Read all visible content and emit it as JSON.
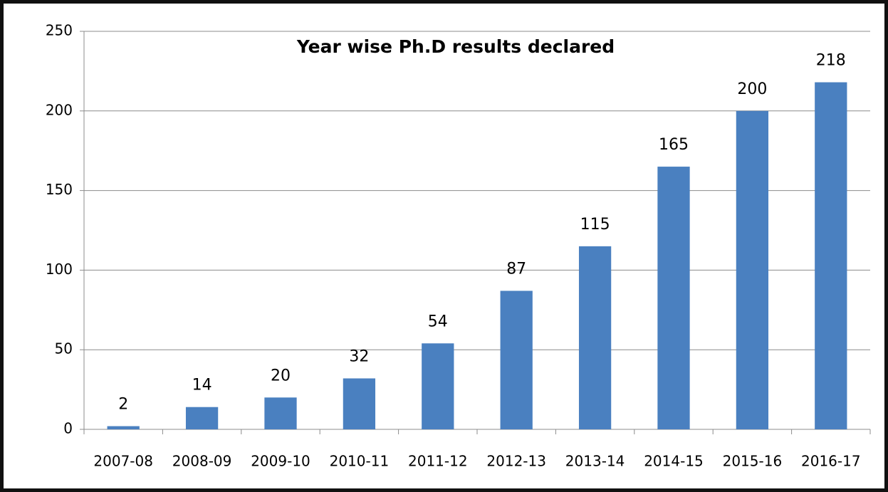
{
  "chart_data": {
    "type": "bar",
    "title": "Year wise Ph.D results declared",
    "categories": [
      "2007-08",
      "2008-09",
      "2009-10",
      "2010-11",
      "2011-12",
      "2012-13",
      "2013-14",
      "2014-15",
      "2015-16",
      "2016-17"
    ],
    "values": [
      2,
      14,
      20,
      32,
      54,
      87,
      115,
      165,
      200,
      218
    ],
    "color": "#4a80c0",
    "ylim": [
      0,
      250
    ],
    "yticks": [
      0,
      50,
      100,
      150,
      200,
      250
    ],
    "grid": true
  }
}
